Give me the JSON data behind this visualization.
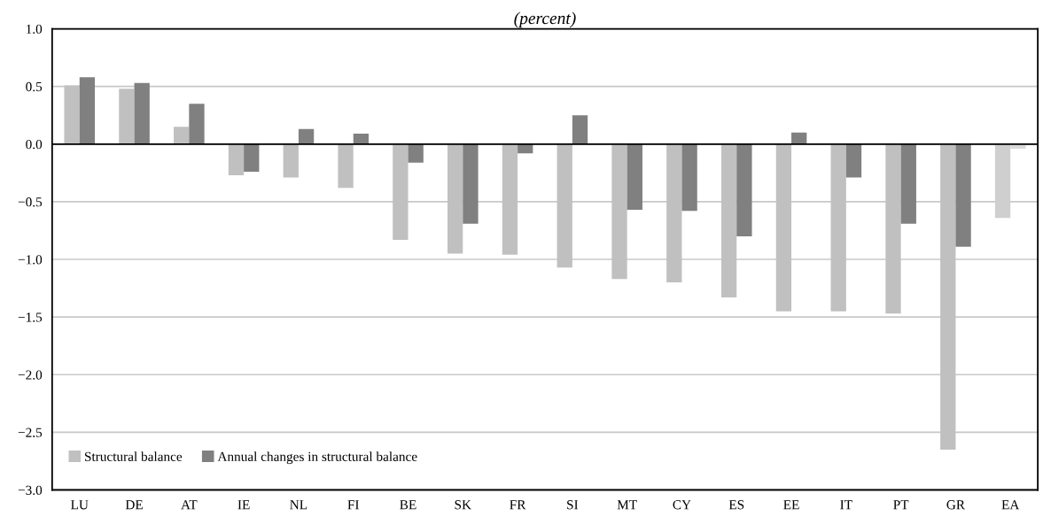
{
  "chart_data": {
    "type": "bar",
    "title": "(percent)",
    "categories": [
      "LU",
      "DE",
      "AT",
      "IE",
      "NL",
      "FI",
      "BE",
      "SK",
      "FR",
      "SI",
      "MT",
      "CY",
      "ES",
      "EE",
      "IT",
      "PT",
      "GR",
      "EA"
    ],
    "series": [
      {
        "name": "Structural balance",
        "color": "#c0c0c0",
        "colors": [
          "#c0c0c0",
          "#c0c0c0",
          "#c0c0c0",
          "#c0c0c0",
          "#c0c0c0",
          "#c0c0c0",
          "#c0c0c0",
          "#c0c0c0",
          "#c0c0c0",
          "#c0c0c0",
          "#c0c0c0",
          "#c0c0c0",
          "#c0c0c0",
          "#c0c0c0",
          "#c0c0c0",
          "#c0c0c0",
          "#c0c0c0",
          "#cfcfcf"
        ],
        "values": [
          0.51,
          0.48,
          0.15,
          -0.27,
          -0.29,
          -0.38,
          -0.83,
          -0.95,
          -0.96,
          -1.07,
          -1.17,
          -1.2,
          -1.33,
          -1.45,
          -1.45,
          -1.47,
          -2.65,
          -0.64
        ]
      },
      {
        "name": "Annual changes in structural balance",
        "color": "#808080",
        "colors": [
          "#808080",
          "#808080",
          "#808080",
          "#808080",
          "#808080",
          "#808080",
          "#808080",
          "#808080",
          "#808080",
          "#808080",
          "#808080",
          "#808080",
          "#808080",
          "#808080",
          "#808080",
          "#808080",
          "#808080",
          "#d9d9d9"
        ],
        "values": [
          0.58,
          0.53,
          0.35,
          -0.24,
          0.13,
          0.09,
          -0.16,
          -0.69,
          -0.08,
          0.25,
          -0.57,
          -0.58,
          -0.8,
          0.1,
          -0.29,
          -0.69,
          -0.89,
          -0.04
        ]
      }
    ],
    "ylim": [
      -3.0,
      1.0
    ],
    "yticks": [
      {
        "value": 1.0,
        "label": "1.0"
      },
      {
        "value": 0.5,
        "label": "0.5"
      },
      {
        "value": 0.0,
        "label": "0.0"
      },
      {
        "value": -0.5,
        "label": "−0.5"
      },
      {
        "value": -1.0,
        "label": "−1.0"
      },
      {
        "value": -1.5,
        "label": "−1.5"
      },
      {
        "value": -2.0,
        "label": "−2.0"
      },
      {
        "value": -2.5,
        "label": "−2.5"
      },
      {
        "value": -3.0,
        "label": "−3.0"
      }
    ],
    "grid": "y",
    "legend": "bottom left"
  }
}
